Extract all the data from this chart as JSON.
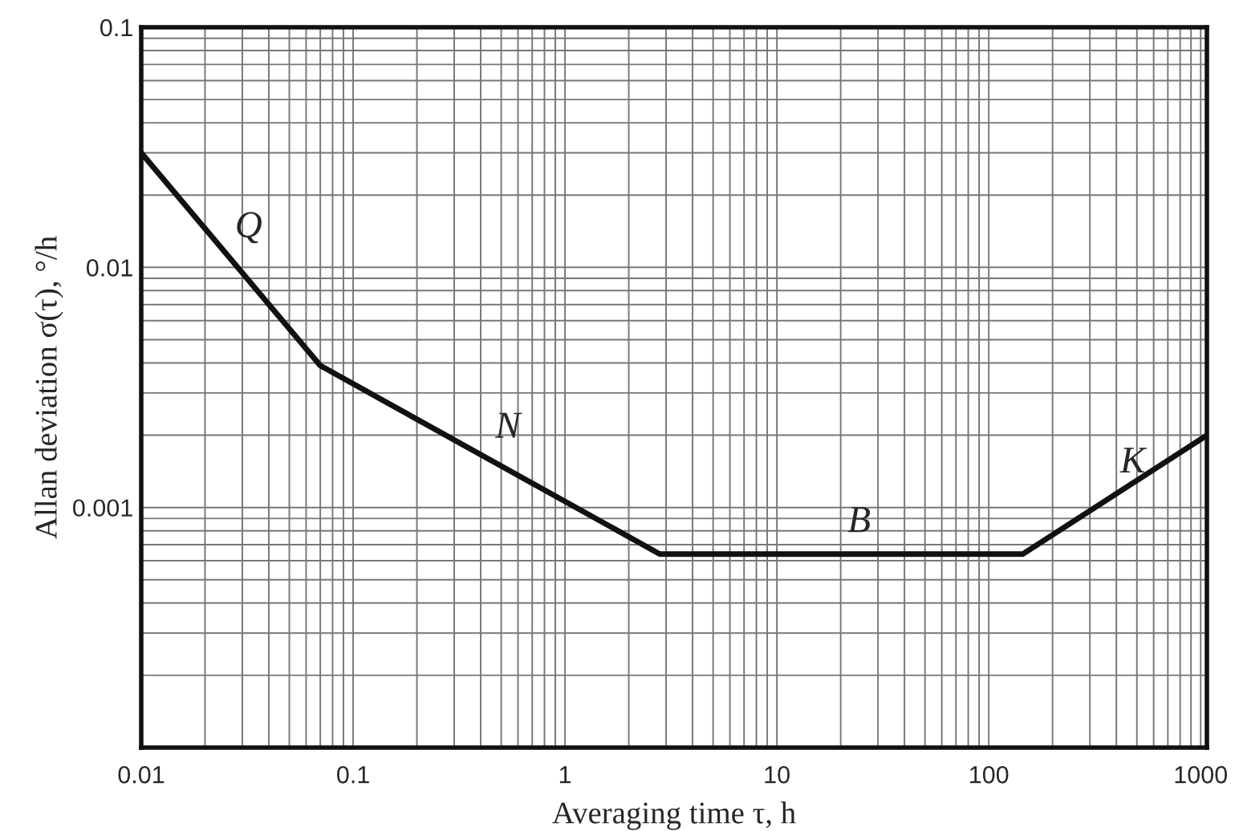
{
  "chart_data": {
    "type": "line",
    "xlabel": "Averaging time τ, h",
    "ylabel": "Allan deviation σ(τ), °/h",
    "log": "xy",
    "grid": true,
    "marker": "none",
    "line_style": "solid",
    "xlim": [
      0.01,
      1070
    ],
    "xticks": [
      0.01,
      0.1,
      1,
      10,
      100,
      1000
    ],
    "ylim": [
      0.0001,
      0.1
    ],
    "yticks": [
      {
        "value": 0.0001,
        "label": null
      },
      0.001,
      0.01,
      0.1
    ],
    "series": [
      {
        "color": "#111111",
        "x": [
          0.01,
          0.07,
          2.8,
          145,
          1070
        ],
        "values": [
          0.03,
          0.0039,
          0.00064,
          0.00064,
          0.002
        ]
      }
    ],
    "annotations": [
      "Q",
      "N",
      "B",
      "K"
    ]
  }
}
